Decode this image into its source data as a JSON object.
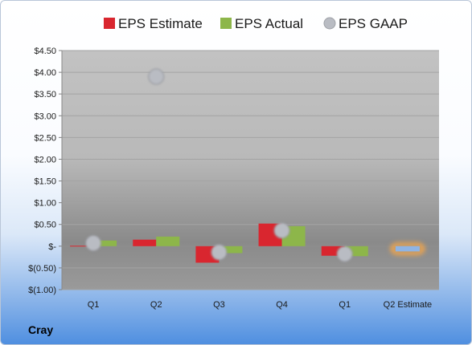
{
  "company": "Cray",
  "colors": {
    "estimate": "#d9262f",
    "actual": "#8db64a",
    "gaap": "#b9bcc3",
    "forecast": "#8fb4e3",
    "forecast_glow": "#f4a64a"
  },
  "chart_data": {
    "type": "bar",
    "title": "",
    "xlabel": "",
    "ylabel": "",
    "ylim": [
      -1.0,
      4.5
    ],
    "yticks": [
      4.5,
      4.0,
      3.5,
      3.0,
      2.5,
      2.0,
      1.5,
      1.0,
      0.5,
      0,
      -0.5,
      -1.0
    ],
    "ytick_labels": [
      "$4.50",
      "$4.00",
      "$3.50",
      "$3.00",
      "$2.50",
      "$2.00",
      "$1.50",
      "$1.00",
      "$0.50",
      "$-",
      "$(0.50)",
      "$(1.00)"
    ],
    "categories": [
      "Q1",
      "Q2",
      "Q3",
      "Q4",
      "Q1",
      "Q2 Estimate"
    ],
    "grid": true,
    "legend_position": "top",
    "series": [
      {
        "name": "EPS Estimate",
        "kind": "bar",
        "values": [
          0.01,
          0.15,
          -0.38,
          0.52,
          -0.22,
          null
        ]
      },
      {
        "name": "EPS Actual",
        "kind": "bar",
        "values": [
          0.13,
          0.22,
          -0.16,
          0.46,
          -0.23,
          null
        ]
      },
      {
        "name": "EPS GAAP",
        "kind": "point",
        "values": [
          0.07,
          3.9,
          -0.14,
          0.36,
          -0.18,
          null
        ]
      },
      {
        "kind": "forecast",
        "values": [
          null,
          null,
          null,
          null,
          null,
          -0.12
        ]
      }
    ]
  }
}
